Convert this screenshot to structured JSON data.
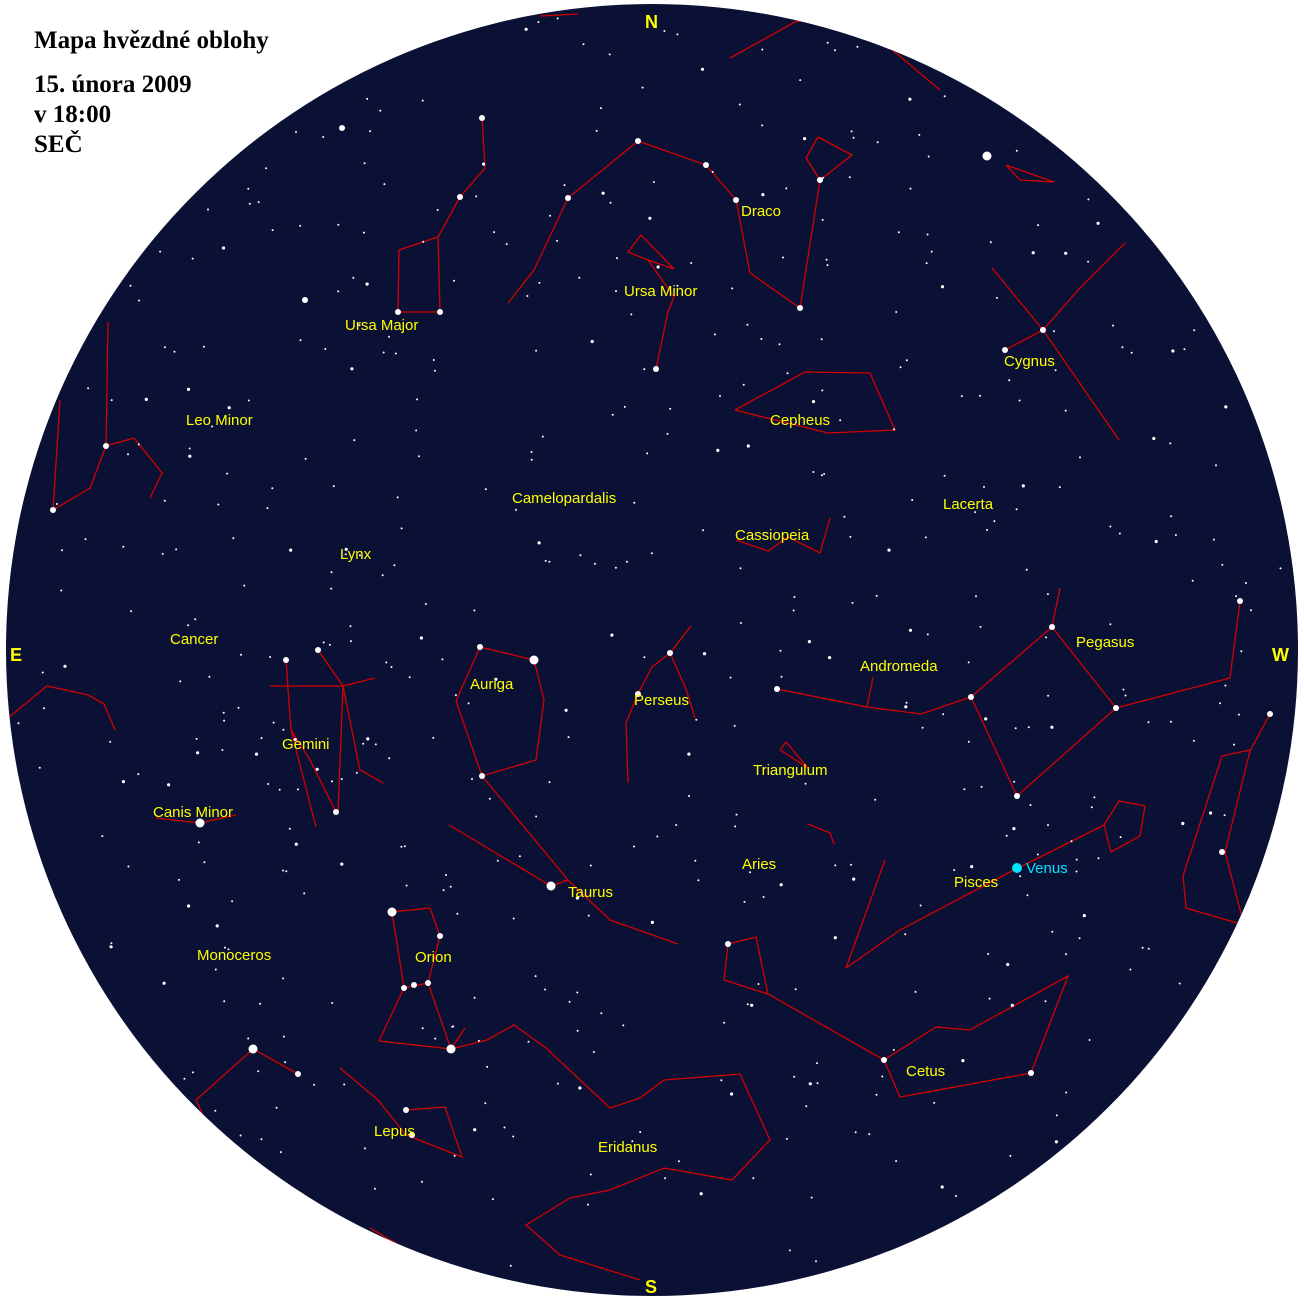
{
  "header": {
    "title": "Mapa hvězdné oblohy",
    "date": "15. února 2009",
    "time": "v 18:00",
    "timezone": "SEČ"
  },
  "colors": {
    "sky": "#0b1035",
    "lines": "#d40000",
    "stars": "#ffffff",
    "labels": "#ffff00",
    "planet": "#00e5ff"
  },
  "cardinals": {
    "north": "N",
    "south": "S",
    "east": "E",
    "west": "W"
  },
  "constellations": [
    "Ursa Major",
    "Ursa Minor",
    "Draco",
    "Cygnus",
    "Cepheus",
    "Leo Minor",
    "Camelopardalis",
    "Lacerta",
    "Cassiopeia",
    "Lynx",
    "Cancer",
    "Auriga",
    "Perseus",
    "Andromeda",
    "Pegasus",
    "Gemini",
    "Triangulum",
    "Canis Minor",
    "Aries",
    "Taurus",
    "Pisces",
    "Monoceros",
    "Orion",
    "Cetus",
    "Lepus",
    "Eridanus"
  ],
  "planets": [
    {
      "name": "Venus",
      "color": "#00e5ff"
    }
  ]
}
